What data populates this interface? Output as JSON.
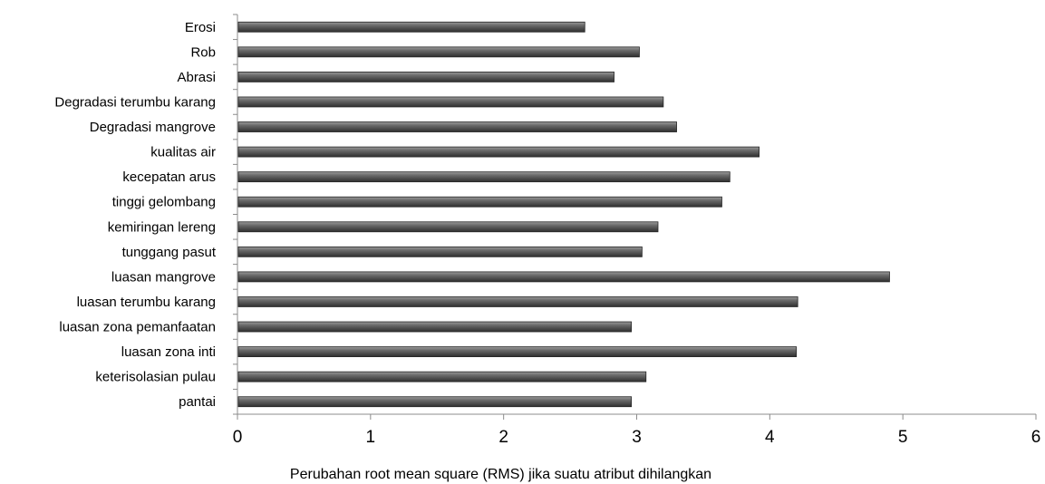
{
  "chart_data": {
    "type": "bar",
    "orientation": "horizontal",
    "categories": [
      "pantai",
      "keterisolasian pulau",
      "luasan zona inti",
      "luasan zona pemanfaatan",
      "luasan terumbu karang",
      "luasan mangrove",
      "tunggang pasut",
      "kemiringan lereng",
      "tinggi gelombang",
      "kecepatan arus",
      "kualitas air",
      "Degradasi mangrove",
      "Degradasi terumbu karang",
      "Abrasi",
      "Rob",
      "Erosi"
    ],
    "values": [
      2.96,
      3.07,
      4.2,
      2.96,
      4.21,
      4.9,
      3.04,
      3.16,
      3.64,
      3.7,
      3.92,
      3.3,
      3.2,
      2.83,
      3.02,
      2.61
    ],
    "xlabel": "Perubahan root mean square (RMS) jika suatu atribut dihilangkan",
    "ylabel": "",
    "xlim": [
      0,
      6
    ],
    "xticks": [
      "0",
      "1",
      "2",
      "3",
      "4",
      "5",
      "6"
    ],
    "grid": false,
    "legend": "none",
    "bar_color": "#555555"
  }
}
